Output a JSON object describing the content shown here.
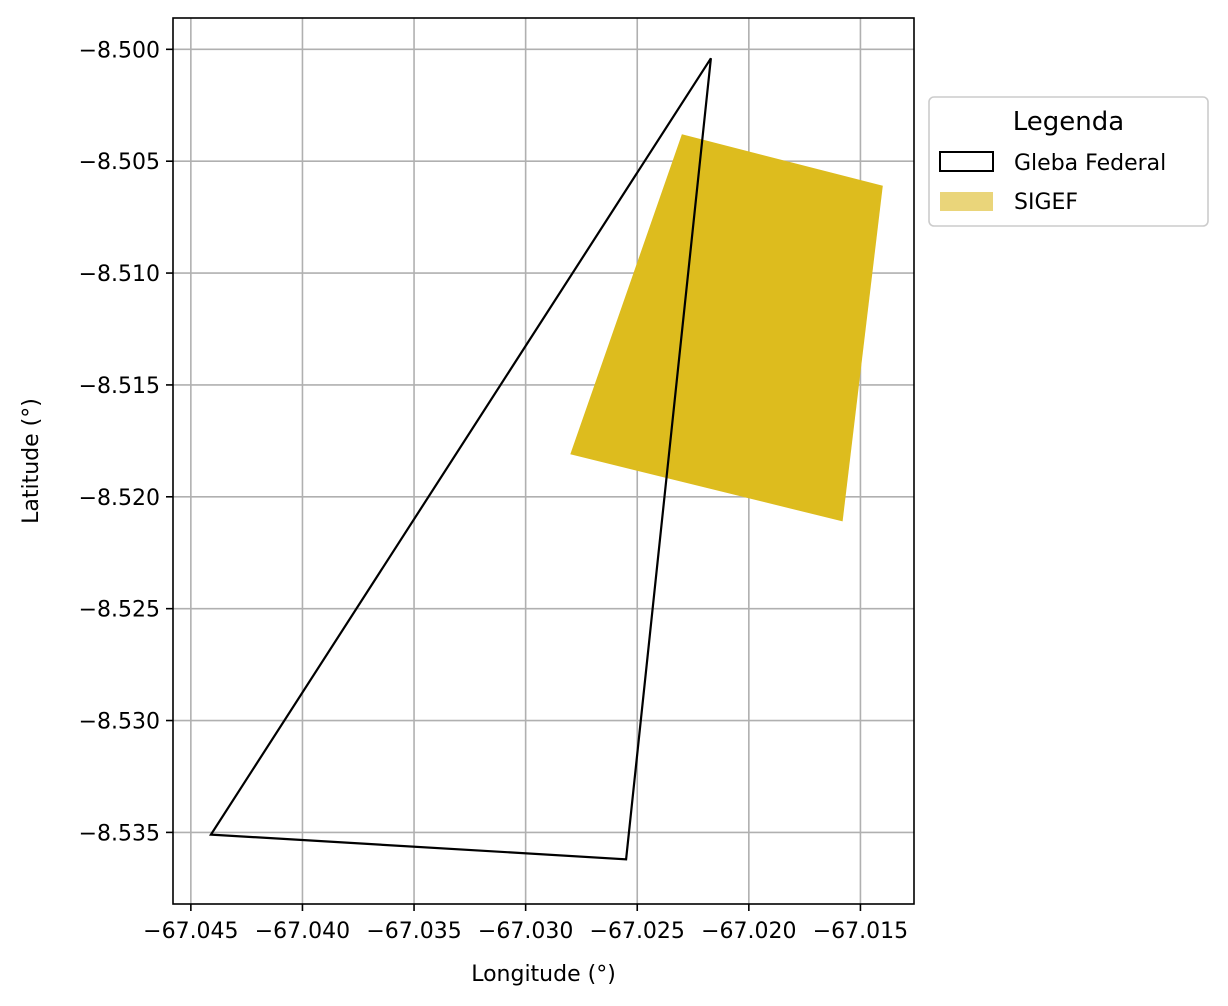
{
  "chart_data": {
    "type": "map",
    "title": "",
    "xlabel": "Longitude (°)",
    "ylabel": "Latitude (°)",
    "xlim": [
      -67.0458,
      -67.0126
    ],
    "ylim": [
      -8.5382,
      -8.4986
    ],
    "grid": true,
    "x_ticks": [
      -67.045,
      -67.04,
      -67.035,
      -67.03,
      -67.025,
      -67.02,
      -67.015
    ],
    "x_tick_labels": [
      "−67.045",
      "−67.040",
      "−67.035",
      "−67.030",
      "−67.025",
      "−67.020",
      "−67.015"
    ],
    "y_ticks": [
      -8.5,
      -8.505,
      -8.51,
      -8.515,
      -8.52,
      -8.525,
      -8.53,
      -8.535
    ],
    "y_tick_labels": [
      "−8.500",
      "−8.505",
      "−8.510",
      "−8.515",
      "−8.520",
      "−8.525",
      "−8.530",
      "−8.535"
    ],
    "legend": {
      "title": "Legenda",
      "placement": "outside-right",
      "entries": [
        "Gleba Federal",
        "SIGEF"
      ]
    },
    "series": [
      {
        "name": "Gleba Federal",
        "geometry": "polygon",
        "style": "outline",
        "color": "#000000",
        "points": [
          [
            -67.0217,
            -8.5004
          ],
          [
            -67.0441,
            -8.5351
          ],
          [
            -67.0255,
            -8.5362
          ]
        ]
      },
      {
        "name": "SIGEF",
        "geometry": "polygon",
        "style": "filled",
        "color": "#DDBC1E",
        "legend_color": "#EAD57A",
        "points": [
          [
            -67.023,
            -8.5038
          ],
          [
            -67.014,
            -8.5061
          ],
          [
            -67.0158,
            -8.5211
          ],
          [
            -67.028,
            -8.5181
          ]
        ]
      }
    ]
  }
}
